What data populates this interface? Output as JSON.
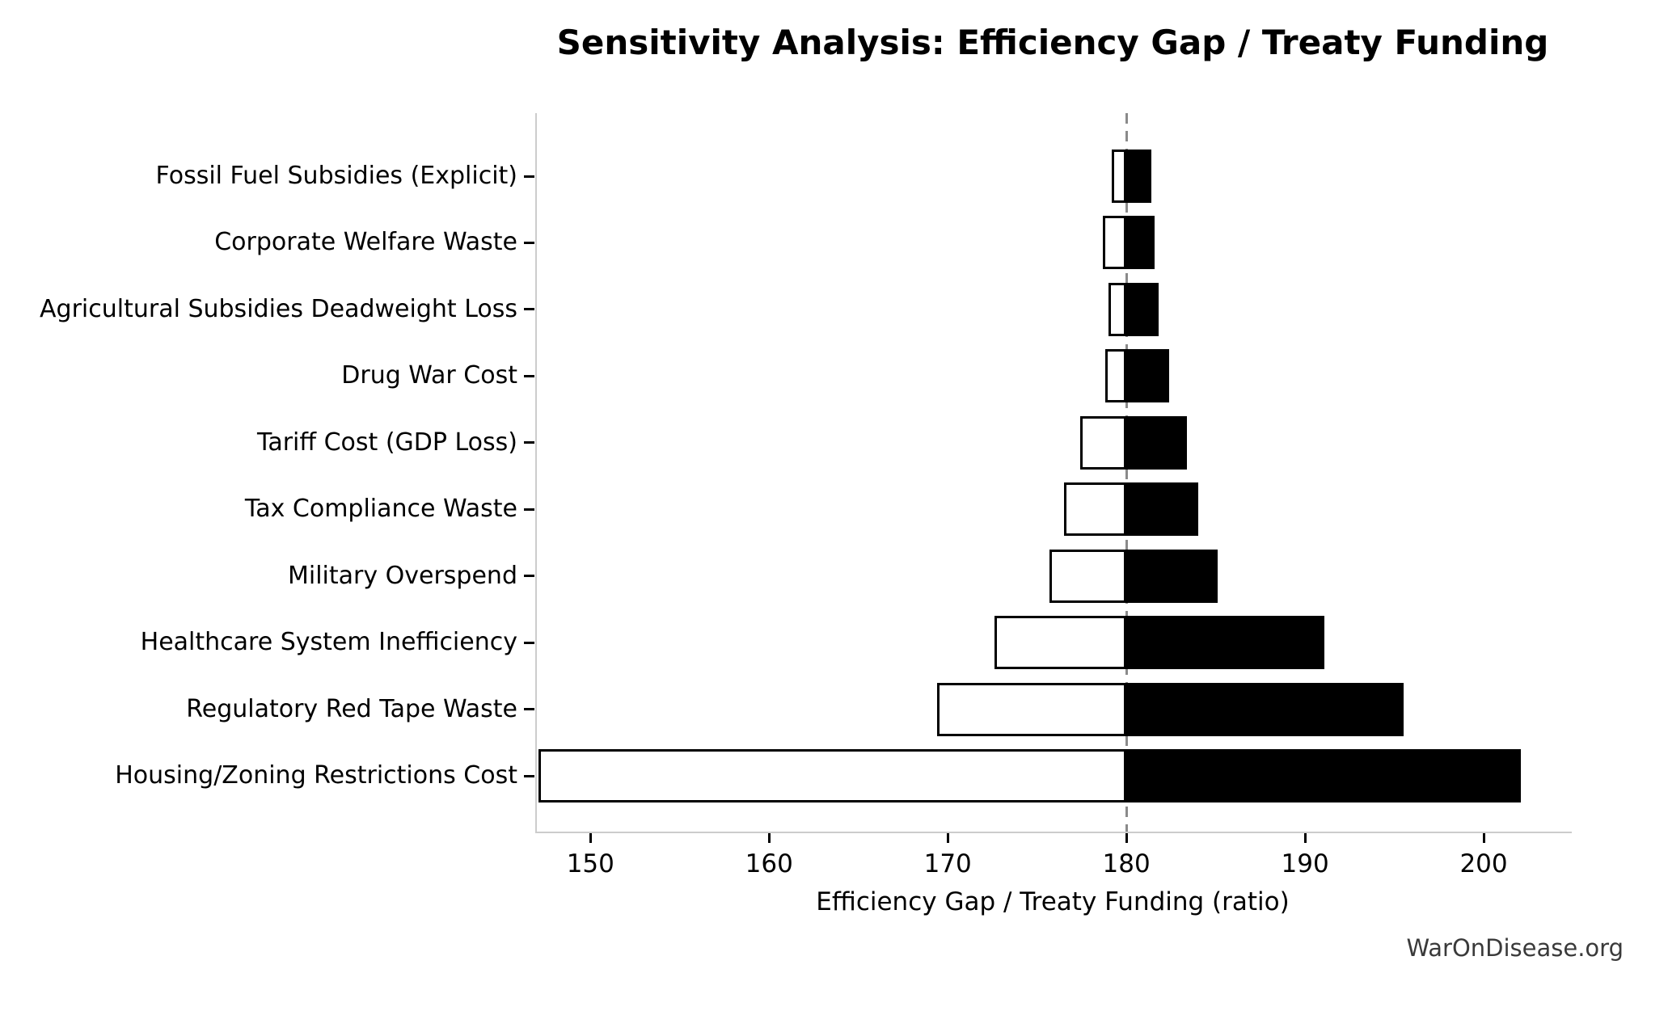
{
  "chart_data": {
    "type": "bar",
    "variant": "tornado-sensitivity",
    "title": "Sensitivity Analysis: Efficiency Gap / Treaty Funding",
    "xlabel": "Efficiency Gap / Treaty Funding (ratio)",
    "watermark": "WarOnDisease.org",
    "baseline": 180,
    "xlim": [
      147.0,
      204.75
    ],
    "xticks": [
      150,
      160,
      170,
      180,
      190,
      200
    ],
    "grid": false,
    "legend": "none",
    "categories": [
      "Fossil Fuel Subsidies (Explicit)",
      "Corporate Welfare Waste",
      "Agricultural Subsidies Deadweight Loss",
      "Drug War Cost",
      "Tariff Cost (GDP Loss)",
      "Tax Compliance Waste",
      "Military Overspend",
      "Healthcare System Inefficiency",
      "Regulatory Red Tape Waste",
      "Housing/Zoning Restrictions Cost"
    ],
    "series": [
      {
        "name": "low",
        "values": [
          179.2,
          178.7,
          179.0,
          178.8,
          177.4,
          176.5,
          175.7,
          172.6,
          169.4,
          147.1
        ]
      },
      {
        "name": "high",
        "values": [
          181.4,
          181.6,
          181.8,
          182.4,
          183.4,
          184.0,
          185.1,
          191.1,
          195.5,
          202.1
        ]
      }
    ],
    "colors": {
      "low_fill": "#ffffff",
      "high_fill": "#000000",
      "bar_edge": "#000000",
      "baseline_line": "#8a8a8a",
      "spine": "#cccccc",
      "tick": "#000000",
      "label_text": "#000000",
      "watermark_text": "#3a3a3a"
    }
  }
}
